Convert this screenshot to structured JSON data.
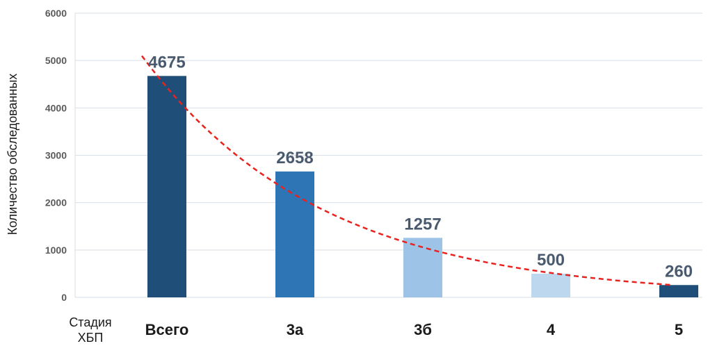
{
  "chart_data": {
    "type": "bar",
    "title": "",
    "xlabel_lines": [
      "Стадия",
      "ХБП"
    ],
    "ylabel": "Количество обследованных",
    "categories": [
      "Всего",
      "3а",
      "3б",
      "4",
      "5"
    ],
    "values": [
      4675,
      2658,
      1257,
      500,
      260
    ],
    "value_labels": [
      "4675",
      "2658",
      "1257",
      "500",
      "260"
    ],
    "bar_colors": [
      "#1f4e79",
      "#2e75b6",
      "#9dc3e6",
      "#bdd7ee",
      "#1f4e79"
    ],
    "ylim": [
      0,
      6000
    ],
    "yticks": [
      0,
      1000,
      2000,
      3000,
      4000,
      5000,
      6000
    ],
    "ytick_labels": [
      "0",
      "1000",
      "2000",
      "3000",
      "4000",
      "5000",
      "6000"
    ],
    "grid": true,
    "grid_color": "#d9dfe6",
    "trendline": {
      "type": "exponential",
      "color": "#e8231f",
      "style": "dashed",
      "from_value": 5100,
      "to_value": 260
    }
  }
}
